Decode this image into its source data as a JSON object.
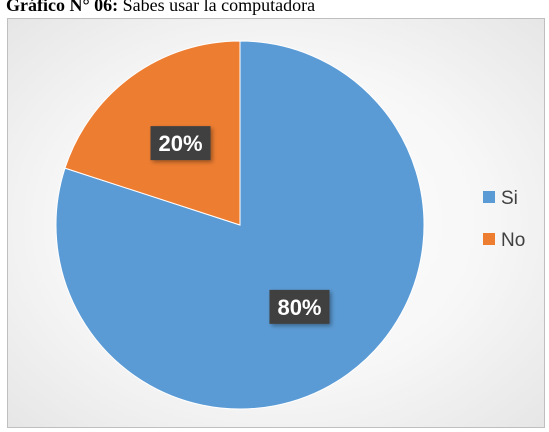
{
  "caption": {
    "bold": "Gráfico N° 06:",
    "rest": " Sabes usar la computadora"
  },
  "chart_data": {
    "type": "pie",
    "categories": [
      "Si",
      "No"
    ],
    "values": [
      80,
      20
    ],
    "data_labels": [
      "80%",
      "20%"
    ],
    "colors": [
      "#5b9bd5",
      "#ed7d31"
    ],
    "legend_position": "right",
    "title": ""
  }
}
